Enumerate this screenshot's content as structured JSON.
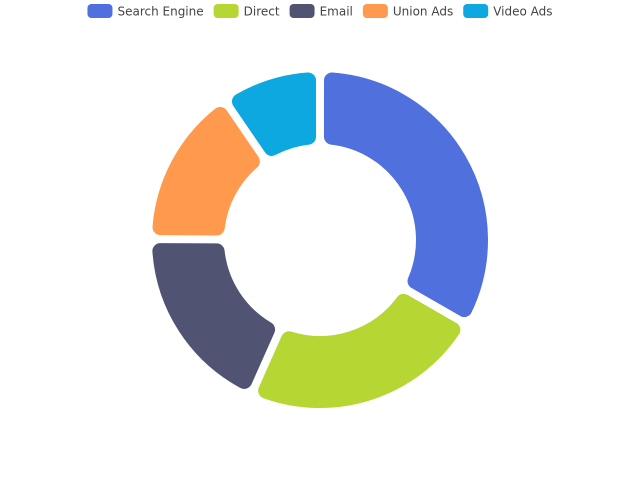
{
  "chart_data": {
    "type": "pie",
    "categories": [
      "Search Engine",
      "Direct",
      "Email",
      "Union Ads",
      "Video Ads"
    ],
    "values": [
      1048,
      735,
      580,
      484,
      300
    ],
    "colors": [
      "#5070dd",
      "#b6d634",
      "#505372",
      "#ff994d",
      "#0ca8df"
    ],
    "legend": "top"
  }
}
